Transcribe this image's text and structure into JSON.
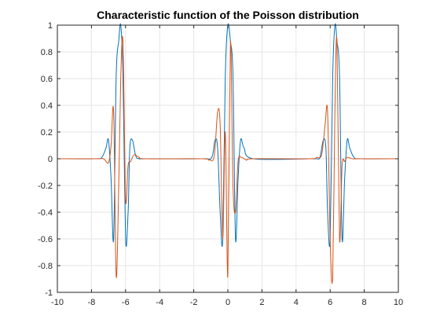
{
  "chart_data": {
    "type": "line",
    "title": "Characteristic function of the Poisson distribution",
    "xlabel": "",
    "ylabel": "",
    "xlim": [
      -10,
      10
    ],
    "ylim": [
      -1,
      1
    ],
    "grid": true,
    "legend": "none",
    "x_ticks": [
      "-10",
      "-8",
      "-6",
      "-4",
      "-2",
      "0",
      "2",
      "4",
      "6",
      "8",
      "10"
    ],
    "y_ticks": [
      "-1",
      "-0.8",
      "-0.6",
      "-0.4",
      "-0.2",
      "0",
      "0.2",
      "0.4",
      "0.6",
      "0.8",
      "1"
    ],
    "series": [
      {
        "color": "#0072BD",
        "x": [
          -10,
          -7.8,
          -7.4,
          -7.15,
          -7.0,
          -6.85,
          -6.7,
          -6.55,
          -6.4,
          -6.283,
          -6.15,
          -6.0,
          -5.85,
          -5.75,
          -5.6,
          -5.4,
          -5.2,
          -4.8,
          -1.5,
          -0.95,
          -0.75,
          -0.6,
          -0.45,
          -0.3,
          -0.15,
          0,
          0.15,
          0.3,
          0.45,
          0.6,
          0.75,
          0.95,
          1.5,
          4.8,
          5.2,
          5.4,
          5.6,
          5.75,
          5.85,
          6.0,
          6.15,
          6.283,
          6.4,
          6.55,
          6.7,
          6.85,
          7.0,
          7.15,
          7.4,
          7.8,
          10
        ],
        "y": [
          0,
          0,
          0.01,
          0.08,
          0.14,
          -0.15,
          -0.6,
          0.62,
          0.88,
          1.0,
          0.62,
          -0.6,
          -0.4,
          0.08,
          0.14,
          0.02,
          0,
          0,
          0,
          0.01,
          0.14,
          0.08,
          -0.4,
          -0.6,
          0.62,
          1.0,
          0.88,
          0.62,
          -0.6,
          -0.15,
          0.14,
          0.08,
          0,
          0,
          0,
          0.01,
          0.14,
          0.08,
          -0.4,
          -0.6,
          0.62,
          1.0,
          0.88,
          0.62,
          -0.6,
          -0.15,
          0.14,
          0.08,
          0.01,
          0,
          0
        ]
      },
      {
        "color": "#D95319",
        "x": [
          -10,
          -7.8,
          -7.3,
          -7.0,
          -6.85,
          -6.7,
          -6.55,
          -6.4,
          -6.283,
          -6.15,
          -6.0,
          -5.85,
          -5.7,
          -5.5,
          -5.2,
          -4.8,
          -1.5,
          -1.1,
          -0.8,
          -0.6,
          -0.45,
          -0.3,
          -0.15,
          0,
          0.15,
          0.3,
          0.45,
          0.6,
          0.8,
          1.1,
          1.5,
          4.8,
          5.2,
          5.5,
          5.7,
          5.85,
          6.0,
          6.15,
          6.283,
          6.4,
          6.55,
          6.7,
          6.85,
          7.0,
          7.3,
          7.8,
          10
        ],
        "y": [
          0,
          0,
          0,
          -0.03,
          0.1,
          0.35,
          -0.88,
          -0.2,
          0.6,
          0.87,
          -0.3,
          -0.05,
          -0.02,
          0.03,
          0.01,
          0,
          0,
          -0.01,
          0.02,
          0.35,
          0.25,
          -0.6,
          0.2,
          -0.88,
          0.87,
          -0.2,
          -0.4,
          -0.02,
          0.01,
          -0.01,
          0,
          0,
          0.01,
          0.03,
          0.25,
          0.35,
          -0.6,
          -0.88,
          0.4,
          0.87,
          -0.6,
          -0.05,
          -0.02,
          0.01,
          0,
          0,
          0
        ]
      }
    ]
  }
}
